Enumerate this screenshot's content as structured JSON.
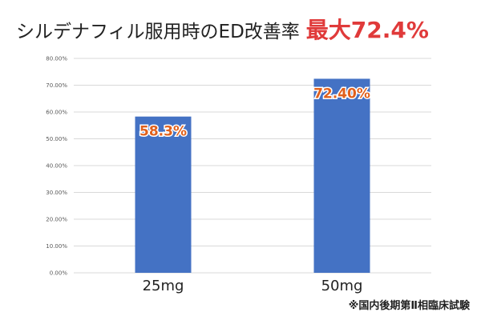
{
  "header": {
    "title_main": "シルデナフィル服用時のED改善率",
    "title_accent": "最大72.4%"
  },
  "footnote": "※国内後期第Ⅱ相臨床試験",
  "colors": {
    "bar": "#4472c4",
    "data_label": "#e0601c",
    "accent": "#e03a3a",
    "grid": "#d9d9d9"
  },
  "chart_data": {
    "type": "bar",
    "categories": [
      "25mg",
      "50mg"
    ],
    "values": [
      58.3,
      72.4
    ],
    "data_labels": [
      "58.3%",
      "72.40%"
    ],
    "y_ticks": [
      "0.00%",
      "10.00%",
      "20.00%",
      "30.00%",
      "40.00%",
      "50.00%",
      "60.00%",
      "70.00%",
      "80.00%"
    ],
    "ylim": [
      0,
      80
    ],
    "grid": true,
    "legend": "none"
  }
}
